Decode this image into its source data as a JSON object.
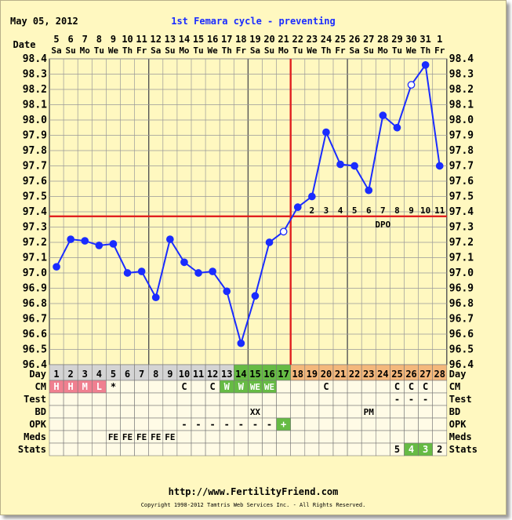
{
  "header": {
    "date": "May 05, 2012",
    "title": "1st Femara cycle - preventing"
  },
  "footer": {
    "url": "http://www.FertilityFriend.com",
    "copyright": "Copyright 1998-2012 Tamtris Web Services Inc. - All Rights Reserved."
  },
  "row_labels": {
    "date": "Date",
    "day": "Day",
    "cm": "CM",
    "test": "Test",
    "bd": "BD",
    "opk": "OPK",
    "meds": "Meds",
    "stats": "Stats"
  },
  "chart_data": {
    "type": "line",
    "ylim": [
      96.4,
      98.4
    ],
    "yticks": [
      "96.4",
      "96.5",
      "96.6",
      "96.7",
      "96.8",
      "96.9",
      "97.0",
      "97.1",
      "97.2",
      "97.3",
      "97.4",
      "97.5",
      "97.6",
      "97.7",
      "97.8",
      "97.9",
      "98.0",
      "98.1",
      "98.2",
      "98.3",
      "98.4"
    ],
    "dates": [
      "5",
      "6",
      "7",
      "8",
      "9",
      "10",
      "11",
      "12",
      "13",
      "14",
      "15",
      "16",
      "17",
      "18",
      "19",
      "20",
      "21",
      "22",
      "23",
      "24",
      "25",
      "26",
      "27",
      "28",
      "29",
      "30",
      "31",
      "1"
    ],
    "weekdays": [
      "Sa",
      "Su",
      "Mo",
      "Tu",
      "We",
      "Th",
      "Fr",
      "Sa",
      "Su",
      "Mo",
      "Tu",
      "We",
      "Th",
      "Fr",
      "Sa",
      "Su",
      "Mo",
      "Tu",
      "We",
      "Th",
      "Fr",
      "Sa",
      "Su",
      "Mo",
      "Tu",
      "We",
      "Th",
      "Fr"
    ],
    "days": [
      "1",
      "2",
      "3",
      "4",
      "5",
      "6",
      "7",
      "8",
      "9",
      "10",
      "11",
      "12",
      "13",
      "14",
      "15",
      "16",
      "17",
      "18",
      "19",
      "20",
      "21",
      "22",
      "23",
      "24",
      "25",
      "26",
      "27",
      "28"
    ],
    "temps": [
      97.04,
      97.22,
      97.21,
      97.18,
      97.19,
      97.0,
      97.01,
      96.84,
      97.22,
      97.07,
      97.0,
      97.01,
      96.88,
      96.54,
      96.85,
      97.2,
      97.27,
      97.43,
      97.5,
      97.92,
      97.71,
      97.7,
      97.54,
      98.03,
      97.95,
      98.23,
      98.36,
      97.7
    ],
    "open_point_days": [
      17,
      26
    ],
    "dpo_labels": [
      "2",
      "3",
      "4",
      "5",
      "6",
      "7",
      "8",
      "9",
      "10",
      "11"
    ],
    "dpo_start_day": 19,
    "coverline": 97.37,
    "coverline_label": "DPO",
    "ovulation_day": 17,
    "day_cell_colors": [
      "#d4d4d4",
      "#d4d4d4",
      "#d4d4d4",
      "#d4d4d4",
      "#d4d4d4",
      "#d4d4d4",
      "#d4d4d4",
      "#d4d4d4",
      "#d4d4d4",
      "#d4d4d4",
      "#d4d4d4",
      "#d4d4d4",
      "#d4d4d4",
      "#66bb44",
      "#66bb44",
      "#66bb44",
      "#66bb44",
      "#f4b87c",
      "#f4b87c",
      "#f4b87c",
      "#f4b87c",
      "#f4b87c",
      "#f4b87c",
      "#f4b87c",
      "#f4b87c",
      "#f4b87c",
      "#f4b87c",
      "#f4b87c"
    ],
    "rows": {
      "cm": [
        "H",
        "H",
        "M",
        "L",
        "*",
        "",
        "",
        "",
        "",
        "C",
        "",
        "C",
        "W",
        "W",
        "WE",
        "WE",
        "",
        "",
        "",
        "C",
        "",
        "",
        "",
        "",
        "C",
        "C",
        "C",
        ""
      ],
      "cm_colors": [
        "#f08090",
        "#f08090",
        "#f08090",
        "#f08090",
        "",
        "",
        "",
        "",
        "",
        "",
        "",
        "",
        "#66bb44",
        "#66bb44",
        "#66bb44",
        "#66bb44",
        "",
        "",
        "",
        "",
        "",
        "",
        "",
        "",
        "",
        "",
        "",
        ""
      ],
      "test": [
        "",
        "",
        "",
        "",
        "",
        "",
        "",
        "",
        "",
        "",
        "",
        "",
        "",
        "",
        "",
        "",
        "",
        "",
        "",
        "",
        "",
        "",
        "",
        "",
        "-",
        "-",
        "-",
        ""
      ],
      "bd": [
        "",
        "",
        "",
        "",
        "",
        "",
        "",
        "",
        "",
        "",
        "",
        "",
        "",
        "",
        "XX",
        "",
        "",
        "",
        "",
        "",
        "",
        "",
        "PM",
        "",
        "",
        "",
        "",
        ""
      ],
      "opk": [
        "",
        "",
        "",
        "",
        "",
        "",
        "",
        "",
        "",
        "-",
        "-",
        "-",
        "-",
        "-",
        "-",
        "-",
        "+",
        "",
        "",
        "",
        "",
        "",
        "",
        "",
        "",
        "",
        "",
        ""
      ],
      "opk_colors": [
        "",
        "",
        "",
        "",
        "",
        "",
        "",
        "",
        "",
        "",
        "",
        "",
        "",
        "",
        "",
        "",
        "#66bb44",
        "",
        "",
        "",
        "",
        "",
        "",
        "",
        "",
        "",
        "",
        ""
      ],
      "meds": [
        "",
        "",
        "",
        "",
        "FE",
        "FE",
        "FE",
        "FE",
        "FE",
        "",
        "",
        "",
        "",
        "",
        "",
        "",
        "",
        "",
        "",
        "",
        "",
        "",
        "",
        "",
        "",
        "",
        "",
        ""
      ],
      "stats": [
        "",
        "",
        "",
        "",
        "",
        "",
        "",
        "",
        "",
        "",
        "",
        "",
        "",
        "",
        "",
        "",
        "",
        "",
        "",
        "",
        "",
        "",
        "",
        "",
        "5",
        "4",
        "3",
        "2"
      ],
      "stats_colors": [
        "",
        "",
        "",
        "",
        "",
        "",
        "",
        "",
        "",
        "",
        "",
        "",
        "",
        "",
        "",
        "",
        "",
        "",
        "",
        "",
        "",
        "",
        "",
        "",
        "",
        "#66bb44",
        "#66bb44",
        ""
      ]
    },
    "colors": {
      "line": "#1a2cff",
      "coverline": "#e02020",
      "grid": "#999999",
      "background": "#fff8c0"
    }
  }
}
